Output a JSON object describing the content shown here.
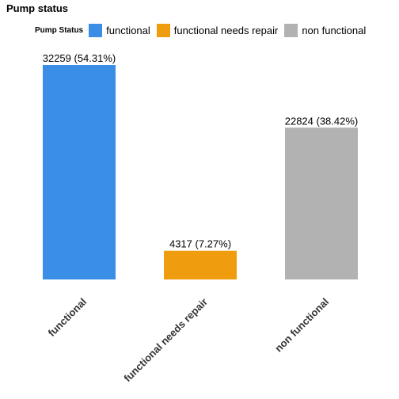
{
  "chart_data": {
    "type": "bar",
    "title": "Pump status",
    "xlabel": "",
    "ylabel": "",
    "categories": [
      "functional",
      "functional needs repair",
      "non functional"
    ],
    "values": [
      32259,
      4317,
      22824
    ],
    "data_labels": [
      "32259 (54.31%)",
      "4317 (7.27%)",
      "22824 (38.42%)"
    ],
    "colors": [
      "#3a8ee6",
      "#f09c0f",
      "#b2b2b2"
    ],
    "ylim": [
      0,
      32259
    ],
    "grid": false,
    "legend": {
      "title": "Pump Status",
      "position": "top",
      "entries": [
        "functional",
        "functional needs repair",
        "non functional"
      ]
    }
  }
}
